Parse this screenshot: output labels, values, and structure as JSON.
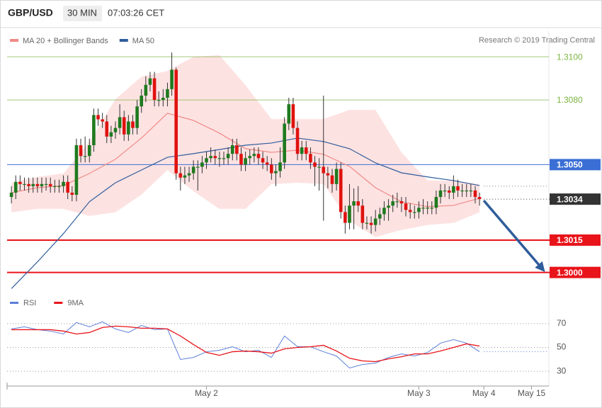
{
  "chart_data": {
    "type": "candlestick",
    "symbol": "GBP/USD",
    "interval": "30 MIN",
    "time": "07:03:26 CET",
    "credit": "Research © 2019 Trading Central",
    "xlim": [
      0,
      125
    ],
    "xticks": [
      {
        "value": 46,
        "label": "May 2"
      },
      {
        "value": 95,
        "label": "May 3"
      },
      {
        "value": 110,
        "label": "May 4"
      },
      {
        "value": 121,
        "label": "May 15"
      }
    ],
    "ylim": [
      1.2992,
      1.3104
    ],
    "up_color": "#1e7a1e",
    "down_color": "#e0120f",
    "candles": [
      [
        1.3035,
        1.304,
        1.3032,
        1.3037
      ],
      [
        1.3037,
        1.3045,
        1.3034,
        1.3042
      ],
      [
        1.3042,
        1.3045,
        1.3038,
        1.3041
      ],
      [
        1.3041,
        1.3044,
        1.3038,
        1.3041
      ],
      [
        1.3041,
        1.3044,
        1.3037,
        1.304
      ],
      [
        1.304,
        1.3044,
        1.3037,
        1.3041
      ],
      [
        1.3041,
        1.3044,
        1.3037,
        1.304
      ],
      [
        1.304,
        1.3044,
        1.3037,
        1.3041
      ],
      [
        1.3041,
        1.3044,
        1.3038,
        1.3041
      ],
      [
        1.3041,
        1.3044,
        1.3037,
        1.304
      ],
      [
        1.304,
        1.3043,
        1.3037,
        1.304
      ],
      [
        1.304,
        1.3043,
        1.3037,
        1.304
      ],
      [
        1.304,
        1.3045,
        1.3037,
        1.3042
      ],
      [
        1.3042,
        1.3045,
        1.3034,
        1.3037
      ],
      [
        1.3037,
        1.304,
        1.3033,
        1.3036
      ],
      [
        1.3036,
        1.3062,
        1.3033,
        1.3059
      ],
      [
        1.3059,
        1.3062,
        1.3051,
        1.3054
      ],
      [
        1.3054,
        1.3063,
        1.3051,
        1.3054
      ],
      [
        1.3054,
        1.3062,
        1.3051,
        1.3059
      ],
      [
        1.3059,
        1.3076,
        1.3056,
        1.3073
      ],
      [
        1.3073,
        1.3076,
        1.3068,
        1.3071
      ],
      [
        1.3071,
        1.3074,
        1.3067,
        1.307
      ],
      [
        1.307,
        1.3073,
        1.306,
        1.3063
      ],
      [
        1.3063,
        1.3068,
        1.306,
        1.3065
      ],
      [
        1.3065,
        1.307,
        1.3062,
        1.3067
      ],
      [
        1.3067,
        1.3078,
        1.3064,
        1.3072
      ],
      [
        1.3072,
        1.3075,
        1.3061,
        1.3064
      ],
      [
        1.3064,
        1.3073,
        1.3061,
        1.307
      ],
      [
        1.307,
        1.3073,
        1.3064,
        1.3067
      ],
      [
        1.3067,
        1.308,
        1.3064,
        1.3077
      ],
      [
        1.3077,
        1.3085,
        1.3074,
        1.3082
      ],
      [
        1.3082,
        1.3091,
        1.3079,
        1.3087
      ],
      [
        1.3087,
        1.3093,
        1.3084,
        1.309
      ],
      [
        1.309,
        1.3093,
        1.3077,
        1.308
      ],
      [
        1.308,
        1.3084,
        1.3077,
        1.308
      ],
      [
        1.308,
        1.3085,
        1.3077,
        1.3081
      ],
      [
        1.3081,
        1.3088,
        1.3077,
        1.3085
      ],
      [
        1.3085,
        1.3102,
        1.3082,
        1.3094
      ],
      [
        1.3094,
        1.3095,
        1.3043,
        1.3046
      ],
      [
        1.3046,
        1.3049,
        1.3038,
        1.3044
      ],
      [
        1.3044,
        1.3049,
        1.3041,
        1.3045
      ],
      [
        1.3045,
        1.3049,
        1.3042,
        1.3046
      ],
      [
        1.3046,
        1.3052,
        1.3043,
        1.3049
      ],
      [
        1.3049,
        1.3052,
        1.3038,
        1.3049
      ],
      [
        1.3049,
        1.3054,
        1.3046,
        1.3051
      ],
      [
        1.3051,
        1.3056,
        1.3048,
        1.3053
      ],
      [
        1.3053,
        1.3058,
        1.3051,
        1.3054
      ],
      [
        1.3054,
        1.3057,
        1.305,
        1.3053
      ],
      [
        1.3053,
        1.3056,
        1.3049,
        1.3053
      ],
      [
        1.3053,
        1.3056,
        1.305,
        1.3053
      ],
      [
        1.3053,
        1.3058,
        1.305,
        1.3055
      ],
      [
        1.3055,
        1.3062,
        1.3052,
        1.3059
      ],
      [
        1.3059,
        1.3062,
        1.3052,
        1.3055
      ],
      [
        1.3055,
        1.3058,
        1.3047,
        1.305
      ],
      [
        1.305,
        1.3056,
        1.3047,
        1.3053
      ],
      [
        1.3053,
        1.3057,
        1.305,
        1.3054
      ],
      [
        1.3054,
        1.3058,
        1.3051,
        1.3055
      ],
      [
        1.3055,
        1.3058,
        1.305,
        1.3053
      ],
      [
        1.3053,
        1.3056,
        1.3048,
        1.3051
      ],
      [
        1.3051,
        1.3054,
        1.3047,
        1.305
      ],
      [
        1.305,
        1.3053,
        1.3043,
        1.3046
      ],
      [
        1.3046,
        1.305,
        1.304,
        1.3047
      ],
      [
        1.3047,
        1.3058,
        1.3044,
        1.3051
      ],
      [
        1.3051,
        1.3072,
        1.3048,
        1.3069
      ],
      [
        1.3069,
        1.3081,
        1.3066,
        1.3078
      ],
      [
        1.3078,
        1.3081,
        1.3064,
        1.3067
      ],
      [
        1.3067,
        1.307,
        1.3052,
        1.3055
      ],
      [
        1.3055,
        1.3061,
        1.3052,
        1.3058
      ],
      [
        1.3058,
        1.3061,
        1.3052,
        1.3055
      ],
      [
        1.3055,
        1.3058,
        1.3048,
        1.3051
      ],
      [
        1.3051,
        1.3054,
        1.304,
        1.3049
      ],
      [
        1.3049,
        1.3053,
        1.3038,
        1.3049
      ],
      [
        1.3049,
        1.3082,
        1.3024,
        1.3046
      ],
      [
        1.3046,
        1.3049,
        1.3039,
        1.3045
      ],
      [
        1.3045,
        1.3048,
        1.3037,
        1.3041
      ],
      [
        1.3041,
        1.3051,
        1.3038,
        1.3048
      ],
      [
        1.3048,
        1.3051,
        1.3025,
        1.3028
      ],
      [
        1.3028,
        1.3031,
        1.3018,
        1.3023
      ],
      [
        1.3023,
        1.3041,
        1.302,
        1.3031
      ],
      [
        1.3031,
        1.3039,
        1.302,
        1.3033
      ],
      [
        1.3033,
        1.304,
        1.3028,
        1.3031
      ],
      [
        1.3031,
        1.3034,
        1.302,
        1.3023
      ],
      [
        1.3023,
        1.3026,
        1.302,
        1.3023
      ],
      [
        1.3023,
        1.3026,
        1.3018,
        1.3022
      ],
      [
        1.3022,
        1.3029,
        1.3019,
        1.3025
      ],
      [
        1.3025,
        1.303,
        1.3022,
        1.3027
      ],
      [
        1.3027,
        1.3033,
        1.3024,
        1.303
      ],
      [
        1.303,
        1.3034,
        1.3024,
        1.3031
      ],
      [
        1.3031,
        1.3036,
        1.3028,
        1.3033
      ],
      [
        1.3033,
        1.3037,
        1.303,
        1.3033
      ],
      [
        1.3033,
        1.3035,
        1.3028,
        1.3032
      ],
      [
        1.3032,
        1.3035,
        1.3026,
        1.3029
      ],
      [
        1.3029,
        1.3032,
        1.3025,
        1.3028
      ],
      [
        1.3028,
        1.3031,
        1.3025,
        1.3028
      ],
      [
        1.3028,
        1.3033,
        1.3025,
        1.303
      ],
      [
        1.303,
        1.3034,
        1.3027,
        1.303
      ],
      [
        1.303,
        1.3033,
        1.3027,
        1.303
      ],
      [
        1.303,
        1.3033,
        1.3027,
        1.303
      ],
      [
        1.303,
        1.3038,
        1.3027,
        1.3035
      ],
      [
        1.3035,
        1.3041,
        1.3032,
        1.3038
      ],
      [
        1.3038,
        1.3041,
        1.3035,
        1.3038
      ],
      [
        1.3038,
        1.304,
        1.3034,
        1.3037
      ],
      [
        1.3037,
        1.3045,
        1.3034,
        1.304
      ],
      [
        1.304,
        1.3043,
        1.3035,
        1.3038
      ],
      [
        1.3038,
        1.3041,
        1.3035,
        1.3038
      ],
      [
        1.3038,
        1.3041,
        1.3035,
        1.3038
      ],
      [
        1.3038,
        1.3041,
        1.3035,
        1.3038
      ],
      [
        1.3038,
        1.304,
        1.3032,
        1.3035
      ],
      [
        1.3035,
        1.3037,
        1.3031,
        1.3034
      ]
    ],
    "overlays": [
      {
        "name": "MA 20 + Bollinger Bands",
        "color": "#f08a86",
        "band_color": "#fde2e2",
        "x": [
          1,
          7,
          13,
          19,
          25,
          31,
          37,
          43,
          49,
          55,
          61,
          67,
          73,
          79,
          85,
          91,
          97,
          103,
          109
        ],
        "values": [
          1.3037,
          1.30393,
          1.30403,
          1.30459,
          1.30525,
          1.30623,
          1.30738,
          1.30705,
          1.30646,
          1.30574,
          1.30557,
          1.30567,
          1.30548,
          1.30492,
          1.30393,
          1.30328,
          1.30305,
          1.30311,
          1.30344
        ],
        "upper": [
          1.30416,
          1.30443,
          1.30459,
          1.30607,
          1.30803,
          1.30908,
          1.30934,
          1.31,
          1.31007,
          1.30869,
          1.30711,
          1.30711,
          1.30711,
          1.30754,
          1.30754,
          1.30557,
          1.30426,
          1.30426,
          1.3041
        ],
        "lower": [
          1.30279,
          1.30295,
          1.30295,
          1.30262,
          1.30279,
          1.30361,
          1.30475,
          1.30377,
          1.30295,
          1.30295,
          1.3041,
          1.30416,
          1.3041,
          1.30239,
          1.30164,
          1.30197,
          1.3022,
          1.3023,
          1.30279
        ]
      },
      {
        "name": "MA 50",
        "color": "#2f5d9b",
        "x": [
          1,
          7,
          13,
          19,
          25,
          31,
          37,
          43,
          49,
          55,
          61,
          67,
          73,
          79,
          85,
          91,
          97,
          103,
          109
        ],
        "values": [
          1.29925,
          1.30049,
          1.3018,
          1.30328,
          1.30416,
          1.30475,
          1.30534,
          1.30551,
          1.3057,
          1.3059,
          1.306,
          1.30623,
          1.30607,
          1.30574,
          1.30508,
          1.30462,
          1.30443,
          1.30426,
          1.30403
        ]
      }
    ],
    "levels": [
      {
        "value": 1.31,
        "label": "1.3100",
        "color": "#7cb342",
        "style": "solid"
      },
      {
        "value": 1.308,
        "label": "1.3080",
        "color": "#7cb342",
        "style": "solid"
      },
      {
        "value": 1.305,
        "label": "1.3050",
        "color": "#3b6fd6",
        "style": "solid",
        "box": true
      },
      {
        "value": 1.304,
        "color": "#777777",
        "style": "dotted"
      },
      {
        "value": 1.3034,
        "label": "1.3034",
        "color": "#333333",
        "style": "dotted",
        "box": true
      },
      {
        "value": 1.3015,
        "label": "1.3015",
        "color": "#e8141a",
        "style": "bold",
        "box": true
      },
      {
        "value": 1.3,
        "label": "1.3000",
        "color": "#e8141a",
        "style": "bold",
        "box": true
      }
    ],
    "rsi": {
      "ylim": [
        20,
        80
      ],
      "yticks": [
        30,
        50,
        70
      ],
      "level": 46.4,
      "x": [
        1,
        4,
        7,
        10,
        13,
        16,
        19,
        22,
        25,
        28,
        31,
        34,
        37,
        40,
        43,
        46,
        49,
        52,
        55,
        58,
        61,
        64,
        67,
        70,
        73,
        76,
        79,
        82,
        85,
        88,
        91,
        94,
        97,
        100,
        103,
        106,
        109
      ],
      "series": [
        {
          "name": "RSI",
          "color": "#5b7fd8",
          "values": [
            65.5,
            67.3,
            64.9,
            63.7,
            61.3,
            70.9,
            67.3,
            71.5,
            65.5,
            62.5,
            68.5,
            64.9,
            65.5,
            39.9,
            41.6,
            46.4,
            47.6,
            50.6,
            46.4,
            47.6,
            41.6,
            59.6,
            50.6,
            50.6,
            46.4,
            42.8,
            32.7,
            35.7,
            36.9,
            41.6,
            44.6,
            42.8,
            45.8,
            53.6,
            56.6,
            53.6,
            46.4
          ]
        },
        {
          "name": "9MA",
          "color": "#e8141a",
          "values": [
            64.9,
            64.9,
            64.9,
            64.9,
            63.7,
            61.3,
            62.5,
            66.7,
            67.9,
            67.3,
            66.1,
            66.1,
            65.5,
            59.6,
            52.4,
            45.8,
            43.4,
            46.4,
            47.0,
            46.4,
            45.2,
            48.8,
            50.0,
            50.6,
            51.8,
            47.0,
            41.0,
            38.7,
            38.1,
            40.4,
            42.2,
            44.6,
            44.6,
            47.0,
            50,
            53,
            51.2
          ]
        }
      ]
    }
  }
}
